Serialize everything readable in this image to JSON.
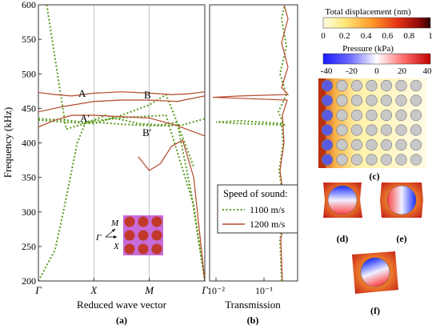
{
  "colors": {
    "series_1100": "#5a9a1e",
    "series_1200": "#b5482a",
    "inset_bg": "#c86ad8",
    "inset_circle": "#c0392b"
  },
  "chart_data": [
    {
      "type": "line",
      "panel": "(a)",
      "xlabel": "Reduced wave vector",
      "ylabel": "Frequency (kHz)",
      "x_ticks": [
        "Γ",
        "X",
        "M",
        "Γ"
      ],
      "ylim": [
        200,
        600
      ],
      "y_ticks": [
        200,
        250,
        300,
        350,
        400,
        450,
        500,
        550,
        600
      ],
      "annotations": [
        "A",
        "B",
        "A′",
        "B′"
      ],
      "inset_labels": [
        "M",
        "Γ",
        "X"
      ],
      "series": [
        {
          "name": "1100 m/s",
          "style": "dotted",
          "bands": [
            {
              "x": [
                0,
                0.3,
                0.45,
                0.55,
                0.7,
                0.85,
                1.0,
                1.2,
                1.4,
                1.6,
                1.8,
                2.0,
                2.2,
                2.5,
                2.75,
                3.0
              ],
              "y": [
                200,
                245,
                300,
                340,
                400,
                430,
                433,
                440,
                435,
                432,
                428,
                427,
                426,
                430,
                330,
                200
              ]
            },
            {
              "x": [
                0.15,
                0.5,
                1.0,
                1.6,
                2.3,
                2.8,
                3.0
              ],
              "y": [
                600,
                420,
                432,
                437,
                440,
                310,
                200
              ]
            },
            {
              "x": [
                0.0,
                0.5,
                1.0,
                1.5,
                2.0,
                2.3,
                2.5,
                2.8
              ],
              "y": [
                433,
                430,
                428,
                440,
                455,
                470,
                430,
                365
              ]
            },
            {
              "x": [
                0.0,
                0.5,
                0.8,
                1.0,
                1.5,
                2.0,
                2.3,
                2.6,
                3.0
              ],
              "y": [
                435,
                433,
                430,
                430,
                427,
                425,
                425,
                426,
                435
              ]
            }
          ]
        },
        {
          "name": "1200 m/s",
          "style": "solid",
          "bands": [
            {
              "x": [
                0,
                0.3,
                0.6,
                1.0,
                1.5,
                2.0,
                2.4,
                2.7,
                3.0
              ],
              "y": [
                473,
                470,
                468,
                472,
                474,
                472,
                470,
                471,
                474
              ]
            },
            {
              "x": [
                0,
                0.4,
                1.0,
                1.5,
                2.0,
                2.5,
                3.0
              ],
              "y": [
                445,
                452,
                460,
                462,
                462,
                460,
                468
              ]
            },
            {
              "x": [
                0,
                0.3,
                0.6,
                1.0,
                1.5,
                2.0,
                2.5,
                3.0
              ],
              "y": [
                423,
                433,
                440,
                440,
                438,
                436,
                425,
                410
              ]
            },
            {
              "x": [
                1.8,
                2.0,
                2.2,
                2.4,
                2.6,
                2.8,
                3.0
              ],
              "y": [
                380,
                360,
                370,
                395,
                404,
                350,
                200
              ]
            }
          ]
        }
      ]
    },
    {
      "type": "line",
      "panel": "(b)",
      "xlabel": "Transmission",
      "x_ticks": [
        "10⁻²",
        "10⁻¹"
      ],
      "ylim": [
        200,
        600
      ],
      "series": [
        {
          "name": "1100 m/s",
          "style": "dotted"
        },
        {
          "name": "1200 m/s",
          "style": "solid"
        }
      ]
    }
  ],
  "legend": {
    "title": "Speed of sound:",
    "items": [
      {
        "label": "1100 m/s",
        "style": "dotted"
      },
      {
        "label": "1200 m/s",
        "style": "solid"
      }
    ]
  },
  "displacement_bar": {
    "title": "Total displacement (nm)",
    "ticks": [
      "0",
      "0.2",
      "0.4",
      "0.6",
      "0.8",
      "1"
    ]
  },
  "pressure_bar": {
    "title": "Pressure (kPa)",
    "ticks": [
      "-40",
      "-20",
      "0",
      "20",
      "40"
    ]
  },
  "panel_labels": {
    "a": "(a)",
    "b": "(b)",
    "c": "(c)",
    "d": "(d)",
    "e": "(e)",
    "f": "(f)"
  }
}
